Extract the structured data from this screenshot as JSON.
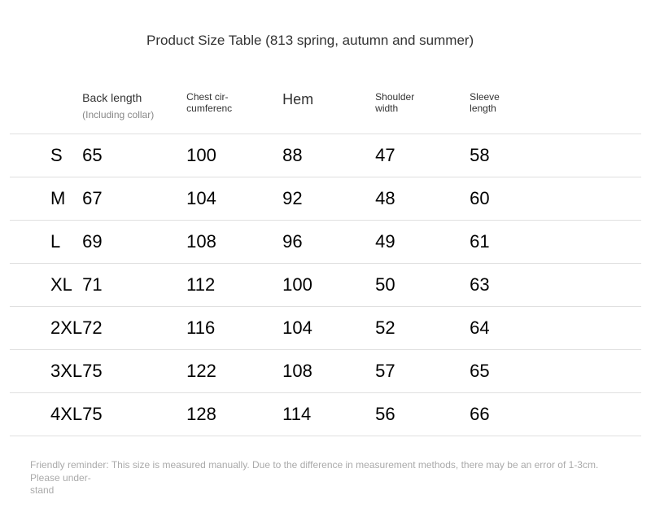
{
  "title": "Product Size Table (813 spring, autumn and summer)",
  "headers": {
    "back_length": "Back length",
    "back_length_sub": "(Including collar)",
    "chest": "Chest cir-\ncumferenc",
    "hem": "Hem",
    "shoulder": "Shoulder\nwidth",
    "sleeve": "Sleeve\nlength"
  },
  "rows": [
    {
      "size": "S",
      "back": "65",
      "chest": "100",
      "hem": "88",
      "shoulder": "47",
      "sleeve": "58"
    },
    {
      "size": "M",
      "back": "67",
      "chest": "104",
      "hem": "92",
      "shoulder": "48",
      "sleeve": "60"
    },
    {
      "size": "L",
      "back": "69",
      "chest": "108",
      "hem": "96",
      "shoulder": "49",
      "sleeve": "61"
    },
    {
      "size": "XL",
      "back": "71",
      "chest": "112",
      "hem": "100",
      "shoulder": "50",
      "sleeve": "63"
    },
    {
      "size": "2XL",
      "back": "72",
      "chest": "116",
      "hem": "104",
      "shoulder": "52",
      "sleeve": "64"
    },
    {
      "size": "3XL",
      "back": "75",
      "chest": "122",
      "hem": "108",
      "shoulder": "57",
      "sleeve": "65"
    },
    {
      "size": "4XL",
      "back": "75",
      "chest": "128",
      "hem": "114",
      "shoulder": "56",
      "sleeve": "66"
    }
  ],
  "footnote": "Friendly reminder: This size is measured manually. Due to the difference in measurement methods, there may be an error of 1-3cm. Please under-\nstand",
  "style": {
    "title_fontsize": 17,
    "header_small_fontsize": 12,
    "header_hem_fontsize": 18,
    "cell_fontsize": 22,
    "footnote_fontsize": 12,
    "border_color": "#e0e0e0",
    "text_color": "#000000",
    "sub_color": "#888888",
    "footnote_color": "#aaaaaa",
    "background_color": "#ffffff"
  }
}
